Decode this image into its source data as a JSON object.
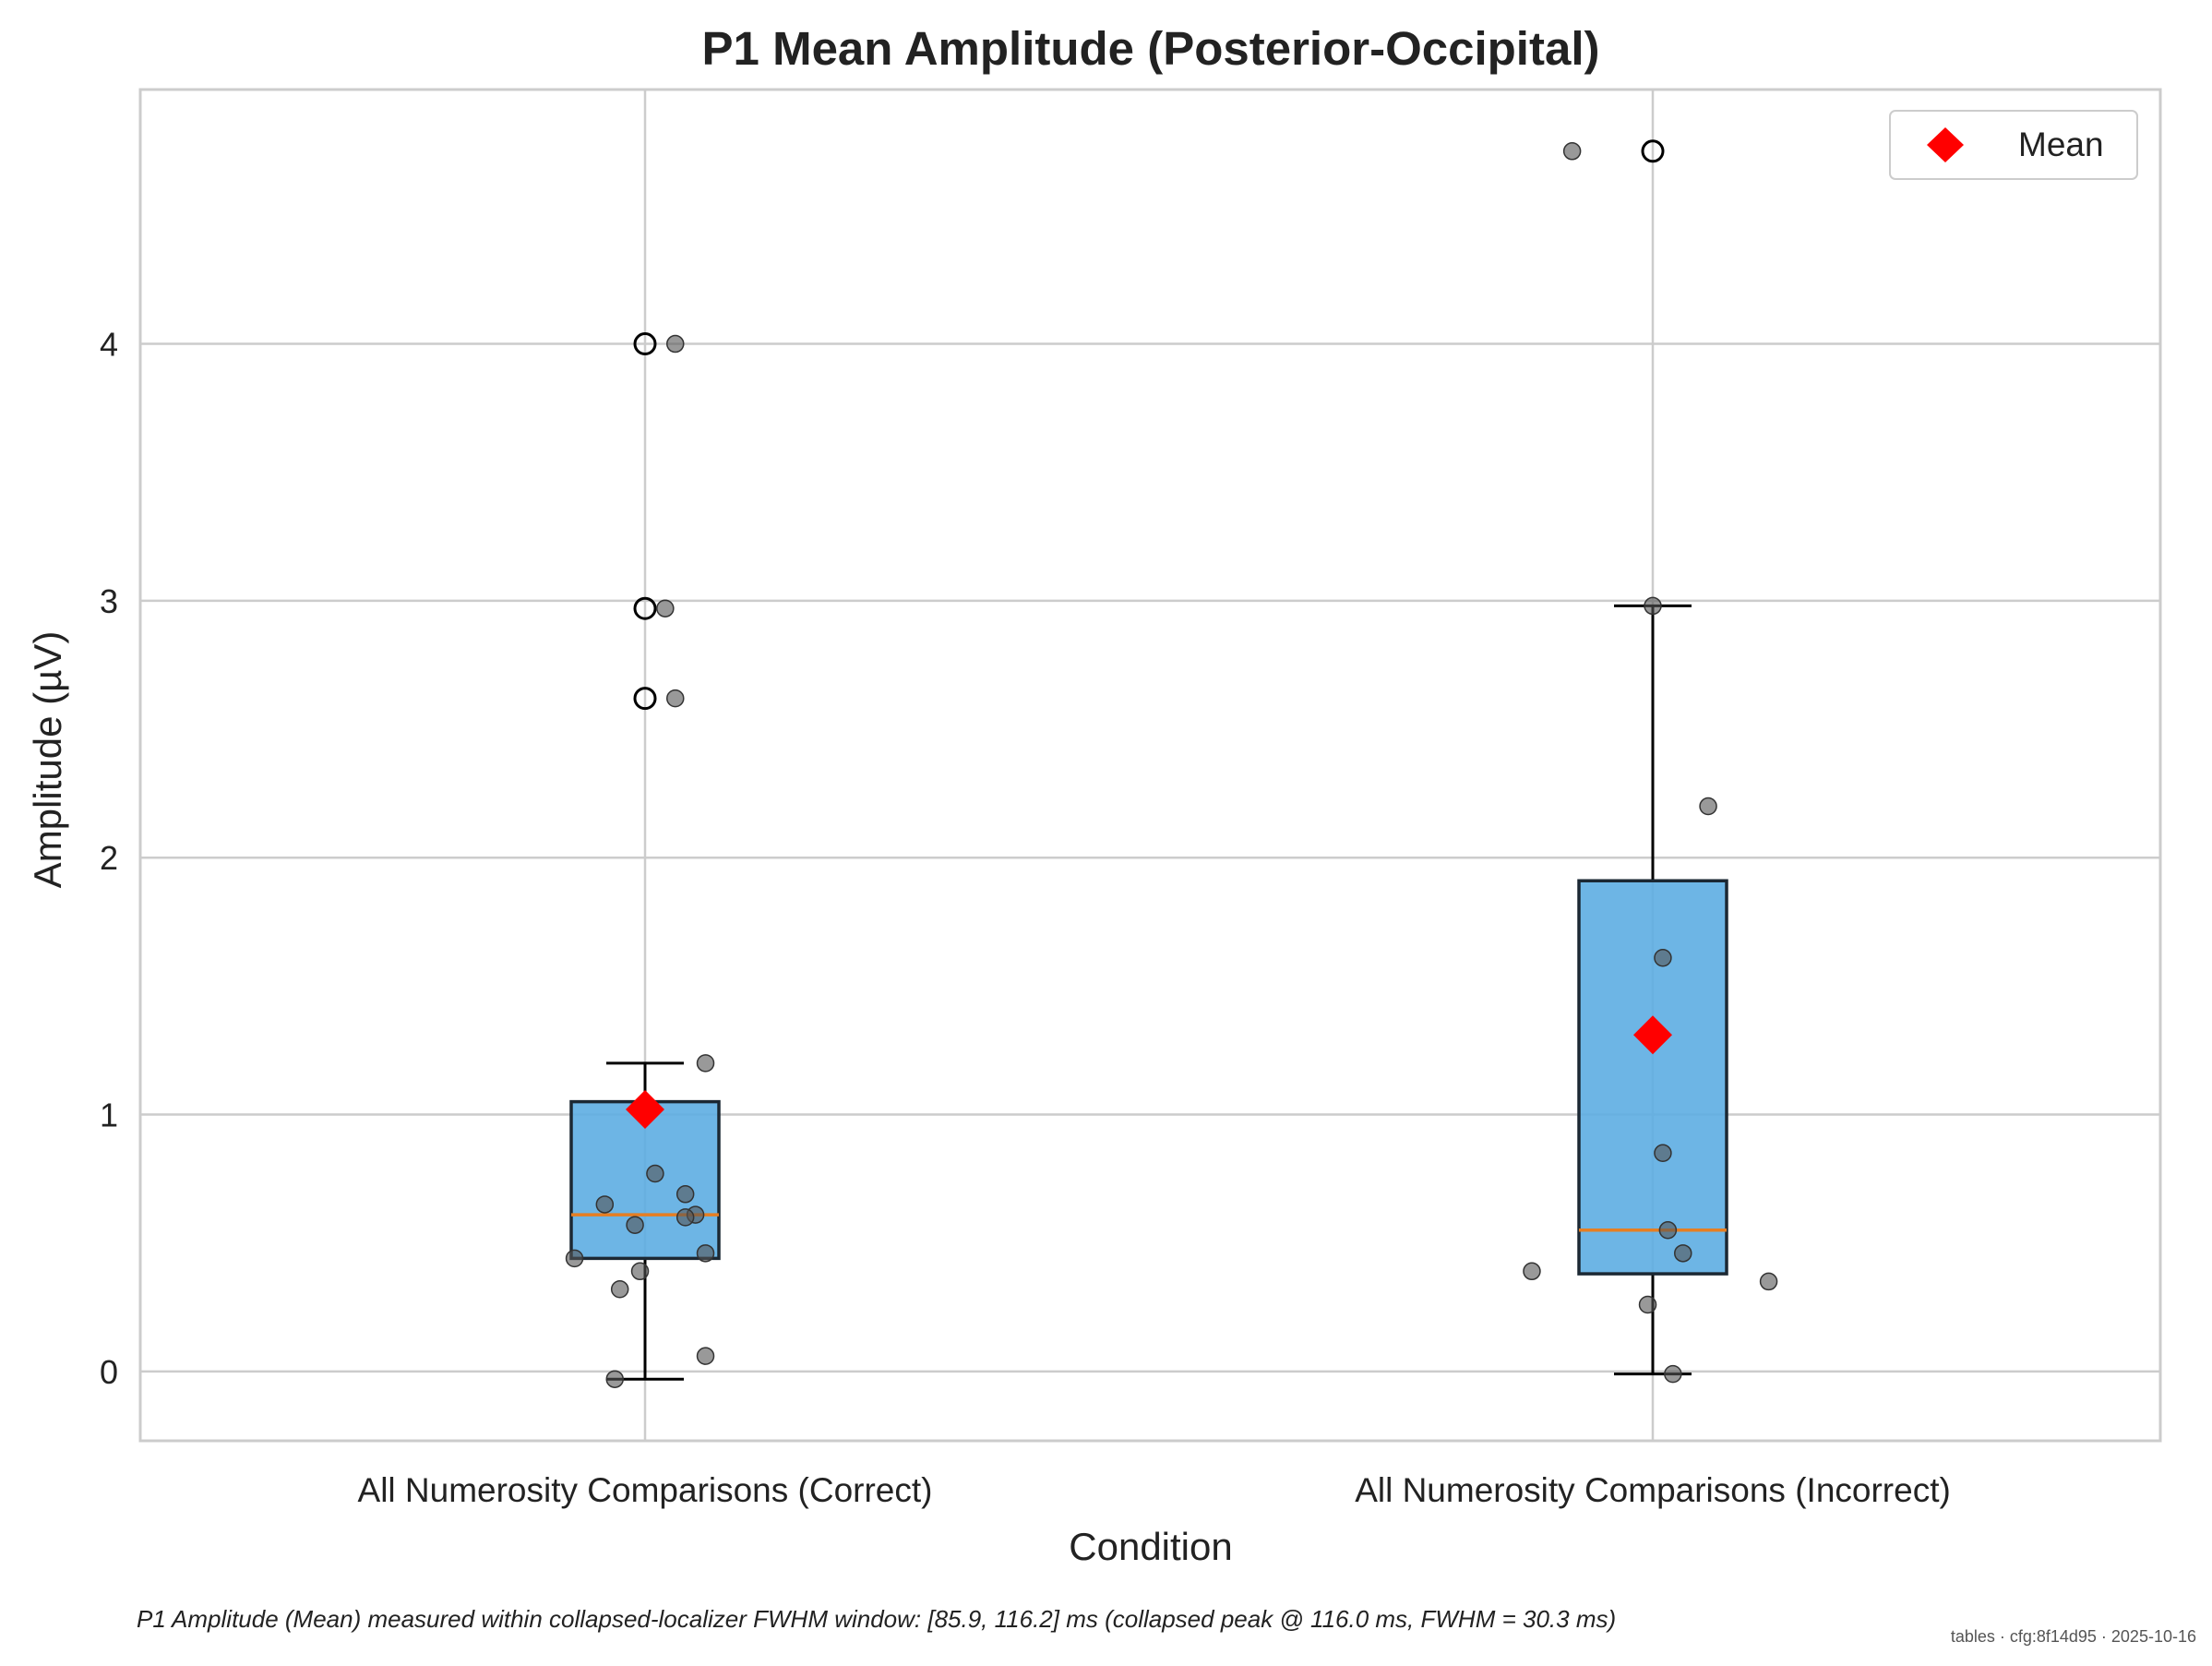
{
  "chart_data": {
    "type": "box",
    "title": "P1 Mean Amplitude (Posterior-Occipital)",
    "xlabel": "Condition",
    "ylabel": "Amplitude (µV)",
    "ylim": [
      -0.27,
      4.99
    ],
    "yticks": [
      0,
      1,
      2,
      3,
      4
    ],
    "grid": true,
    "legend": {
      "position": "top-right",
      "entries": [
        {
          "label": "Mean",
          "marker": "diamond",
          "color": "#ff0000"
        }
      ]
    },
    "categories": [
      "All Numerosity Comparisons (Correct)",
      "All Numerosity Comparisons (Incorrect)"
    ],
    "boxes": [
      {
        "category": "All Numerosity Comparisons (Correct)",
        "whisker_low": -0.03,
        "q1": 0.44,
        "median": 0.61,
        "q3": 1.05,
        "whisker_high": 1.2,
        "mean": 1.02,
        "outliers": [
          2.62,
          2.97,
          4.0
        ]
      },
      {
        "category": "All Numerosity Comparisons (Incorrect)",
        "whisker_low": -0.01,
        "q1": 0.38,
        "median": 0.55,
        "q3": 1.91,
        "whisker_high": 2.98,
        "mean": 1.31,
        "outliers": [
          4.75
        ]
      }
    ],
    "points": [
      [
        {
          "jitter": 0.03,
          "y": 4.0
        },
        {
          "jitter": 0.02,
          "y": 2.97
        },
        {
          "jitter": 0.03,
          "y": 2.62
        },
        {
          "jitter": 0.06,
          "y": 1.2
        },
        {
          "jitter": 0.01,
          "y": 0.77
        },
        {
          "jitter": 0.04,
          "y": 0.69
        },
        {
          "jitter": -0.04,
          "y": 0.65
        },
        {
          "jitter": 0.05,
          "y": 0.61
        },
        {
          "jitter": 0.04,
          "y": 0.6
        },
        {
          "jitter": -0.01,
          "y": 0.57
        },
        {
          "jitter": 0.06,
          "y": 0.46
        },
        {
          "jitter": -0.07,
          "y": 0.44
        },
        {
          "jitter": -0.005,
          "y": 0.39
        },
        {
          "jitter": -0.025,
          "y": 0.32
        },
        {
          "jitter": 0.06,
          "y": 0.06
        },
        {
          "jitter": -0.03,
          "y": -0.03
        }
      ],
      [
        {
          "jitter": -0.08,
          "y": 4.75
        },
        {
          "jitter": 0.0,
          "y": 2.98
        },
        {
          "jitter": 0.055,
          "y": 2.2
        },
        {
          "jitter": 0.01,
          "y": 1.61
        },
        {
          "jitter": 0.01,
          "y": 0.85
        },
        {
          "jitter": 0.015,
          "y": 0.55
        },
        {
          "jitter": 0.03,
          "y": 0.46
        },
        {
          "jitter": -0.12,
          "y": 0.39
        },
        {
          "jitter": 0.115,
          "y": 0.35
        },
        {
          "jitter": -0.005,
          "y": 0.26
        },
        {
          "jitter": 0.02,
          "y": -0.01
        }
      ]
    ],
    "colors": {
      "box_fill": "#5dade2",
      "box_edge": "#1c2833",
      "median": "#e67e22",
      "mean": "#ff0000",
      "points": "#555555",
      "grid": "#cccccc"
    }
  },
  "caption": "P1 Amplitude (Mean) measured within collapsed-localizer FWHM window: [85.9, 116.2] ms (collapsed peak @ 116.0 ms, FWHM = 30.3 ms)",
  "watermark": "tables · cfg:8f14d95 · 2025-10-16"
}
